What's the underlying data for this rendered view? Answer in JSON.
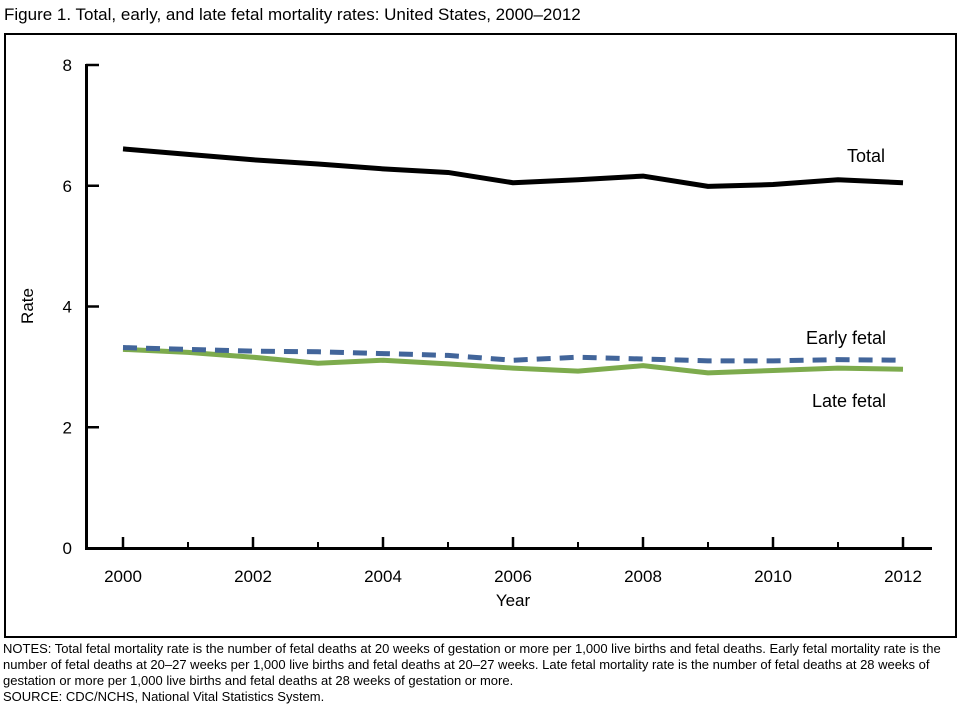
{
  "title": "Figure 1. Total, early, and late fetal mortality rates: United States, 2000–2012",
  "chart_data": {
    "type": "line",
    "x": [
      2000,
      2001,
      2002,
      2003,
      2004,
      2005,
      2006,
      2007,
      2008,
      2009,
      2010,
      2011,
      2012
    ],
    "series": [
      {
        "name": "Total",
        "color": "#000000",
        "style": "solid",
        "values": [
          6.61,
          6.52,
          6.43,
          6.36,
          6.28,
          6.22,
          6.05,
          6.1,
          6.16,
          5.99,
          6.02,
          6.1,
          6.05
        ]
      },
      {
        "name": "Early fetal",
        "color": "#42659a",
        "style": "dashed",
        "values": [
          3.32,
          3.29,
          3.26,
          3.25,
          3.22,
          3.19,
          3.11,
          3.16,
          3.13,
          3.1,
          3.1,
          3.12,
          3.11
        ]
      },
      {
        "name": "Late fetal",
        "color": "#7dab4d",
        "style": "solid",
        "values": [
          3.29,
          3.24,
          3.16,
          3.06,
          3.11,
          3.05,
          2.98,
          2.93,
          3.02,
          2.9,
          2.94,
          2.98,
          2.96
        ]
      }
    ],
    "xlabel": "Year",
    "ylabel": "Rate",
    "ylim": [
      0,
      8
    ],
    "y_ticks": [
      0,
      2,
      4,
      6,
      8
    ],
    "x_major_ticks": [
      2000,
      2002,
      2004,
      2006,
      2008,
      2010,
      2012
    ],
    "x_minor_ticks": [
      2001,
      2003,
      2005,
      2007,
      2009,
      2011
    ],
    "grid": "off",
    "legend_position": "inline labels at right end of each line"
  },
  "notes": "NOTES: Total fetal mortality rate is the number of fetal deaths at 20 weeks of gestation or more per 1,000 live births and fetal deaths. Early fetal mortality rate is the number of fetal deaths at 20–27 weeks per 1,000 live births and fetal deaths at 20–27 weeks. Late fetal mortality rate is the number of fetal deaths at 28 weeks of gestation or more per 1,000 live births and fetal deaths at 28 weeks of gestation or more.",
  "source": "SOURCE: CDC/NCHS, National Vital Statistics System."
}
